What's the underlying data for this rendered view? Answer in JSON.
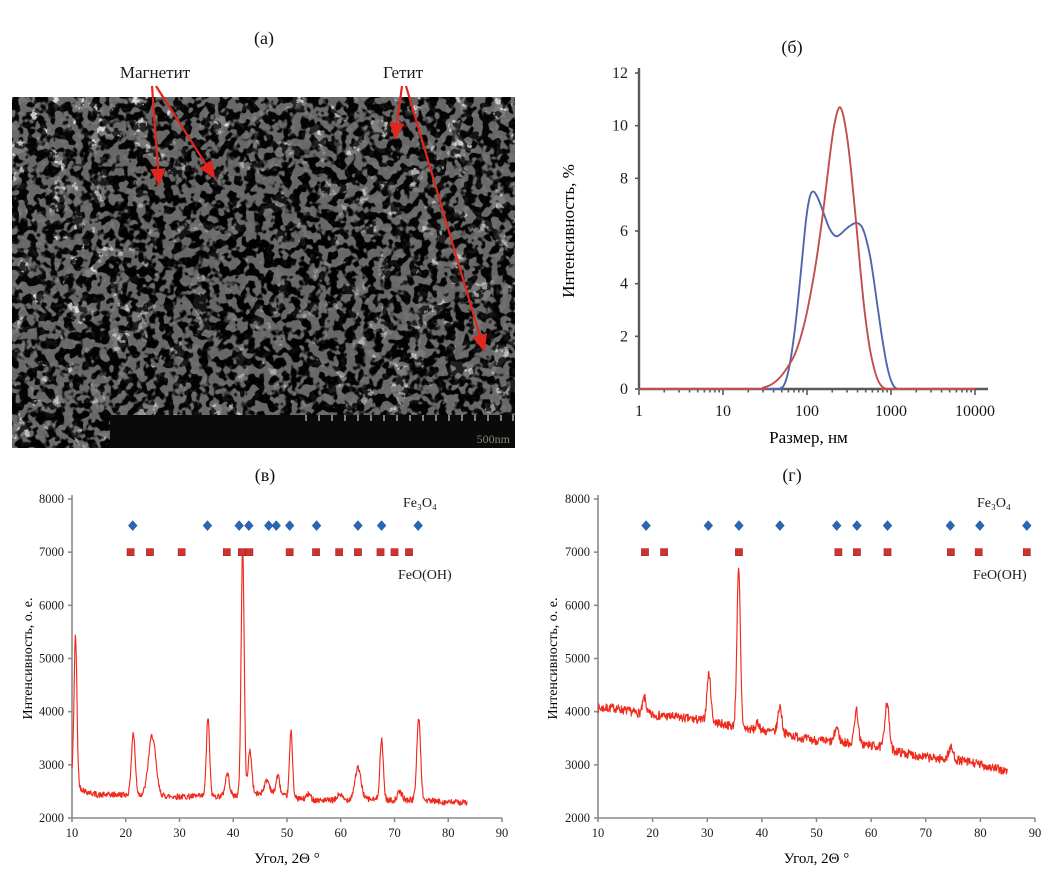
{
  "figure": {
    "background": "#ffffff",
    "panels": {
      "a": {
        "title": "(а)",
        "type": "tem-micrograph",
        "annotations": {
          "magnetite": "Магнетит",
          "goethite": "Гетит"
        },
        "scale_bar": "500nm",
        "arrow_color": "#e0261f"
      }
    }
  },
  "chart_data": [
    {
      "type": "line",
      "panel": "б",
      "title": "(б)",
      "xlabel": "Размер, нм",
      "ylabel": "Интенсивность, %",
      "x_scale": "log",
      "xlim": [
        1,
        10000
      ],
      "ylim": [
        0,
        12
      ],
      "x_ticks": [
        1,
        10,
        100,
        1000,
        10000
      ],
      "y_ticks": [
        0,
        2,
        4,
        6,
        8,
        10,
        12
      ],
      "grid": false,
      "series": [
        {
          "name": "bimodal-distribution-blue",
          "color": "#4f66ae",
          "points": [
            [
              1,
              0
            ],
            [
              35,
              0
            ],
            [
              48,
              0.02
            ],
            [
              55,
              0.25
            ],
            [
              62,
              0.9
            ],
            [
              70,
              2.0
            ],
            [
              78,
              3.3
            ],
            [
              88,
              5.0
            ],
            [
              98,
              6.5
            ],
            [
              108,
              7.3
            ],
            [
              118,
              7.5
            ],
            [
              130,
              7.35
            ],
            [
              145,
              7.0
            ],
            [
              165,
              6.5
            ],
            [
              185,
              6.1
            ],
            [
              205,
              5.88
            ],
            [
              225,
              5.8
            ],
            [
              250,
              5.88
            ],
            [
              285,
              6.05
            ],
            [
              320,
              6.18
            ],
            [
              360,
              6.28
            ],
            [
              400,
              6.3
            ],
            [
              440,
              6.2
            ],
            [
              480,
              5.95
            ],
            [
              520,
              5.55
            ],
            [
              570,
              4.95
            ],
            [
              620,
              4.2
            ],
            [
              680,
              3.3
            ],
            [
              750,
              2.35
            ],
            [
              820,
              1.55
            ],
            [
              900,
              0.85
            ],
            [
              980,
              0.4
            ],
            [
              1060,
              0.15
            ],
            [
              1150,
              0.03
            ],
            [
              1250,
              0
            ],
            [
              10000,
              0
            ]
          ]
        },
        {
          "name": "unimodal-distribution-orange",
          "color": "#c0504d",
          "points": [
            [
              1,
              0
            ],
            [
              24,
              0
            ],
            [
              30,
              0.05
            ],
            [
              38,
              0.18
            ],
            [
              48,
              0.45
            ],
            [
              58,
              0.8
            ],
            [
              70,
              1.25
            ],
            [
              82,
              1.85
            ],
            [
              95,
              2.6
            ],
            [
              110,
              3.6
            ],
            [
              128,
              4.8
            ],
            [
              148,
              6.2
            ],
            [
              168,
              7.6
            ],
            [
              188,
              8.9
            ],
            [
              208,
              9.9
            ],
            [
              228,
              10.5
            ],
            [
              245,
              10.7
            ],
            [
              262,
              10.55
            ],
            [
              282,
              10.1
            ],
            [
              305,
              9.4
            ],
            [
              332,
              8.4
            ],
            [
              362,
              7.2
            ],
            [
              395,
              5.9
            ],
            [
              430,
              4.6
            ],
            [
              468,
              3.4
            ],
            [
              510,
              2.4
            ],
            [
              555,
              1.6
            ],
            [
              605,
              1.0
            ],
            [
              660,
              0.55
            ],
            [
              720,
              0.25
            ],
            [
              790,
              0.08
            ],
            [
              870,
              0.01
            ],
            [
              950,
              0
            ],
            [
              10000,
              0
            ]
          ]
        }
      ]
    },
    {
      "type": "line",
      "panel": "в",
      "title": "(в)",
      "xlabel": "Угол, 2Θ °",
      "ylabel": "Интенсивность, о. е.",
      "xlim": [
        10,
        90
      ],
      "ylim": [
        2000,
        8000
      ],
      "x_ticks": [
        10,
        20,
        30,
        40,
        50,
        60,
        70,
        80,
        90
      ],
      "y_ticks": [
        2000,
        3000,
        4000,
        5000,
        6000,
        7000,
        8000
      ],
      "grid": false,
      "trace": {
        "name": "xrd-pattern",
        "color": "#ef2b1e",
        "x_end": 83.5,
        "noise": 55,
        "seed": 42,
        "baseline": [
          [
            10,
            2780
          ],
          [
            11,
            2600
          ],
          [
            12.5,
            2500
          ],
          [
            15,
            2430
          ],
          [
            18,
            2440
          ],
          [
            22,
            2440
          ],
          [
            26,
            2420
          ],
          [
            30,
            2400
          ],
          [
            34,
            2410
          ],
          [
            38,
            2410
          ],
          [
            42,
            2430
          ],
          [
            45,
            2460
          ],
          [
            48,
            2440
          ],
          [
            50,
            2400
          ],
          [
            53,
            2350
          ],
          [
            57,
            2330
          ],
          [
            60,
            2330
          ],
          [
            63,
            2360
          ],
          [
            66,
            2350
          ],
          [
            70,
            2330
          ],
          [
            73,
            2340
          ],
          [
            76,
            2330
          ],
          [
            79,
            2300
          ],
          [
            83.5,
            2290
          ]
        ],
        "peaks": [
          [
            10.65,
            2750,
            0.38
          ],
          [
            21.4,
            1150,
            0.5
          ],
          [
            24.9,
            1120,
            0.95
          ],
          [
            35.3,
            1480,
            0.42
          ],
          [
            38.9,
            420,
            0.55
          ],
          [
            41.75,
            4680,
            0.4
          ],
          [
            43.1,
            820,
            0.5
          ],
          [
            46.3,
            260,
            0.7
          ],
          [
            48.3,
            360,
            0.5
          ],
          [
            50.75,
            1230,
            0.4
          ],
          [
            54,
            100,
            0.6
          ],
          [
            59.8,
            120,
            0.6
          ],
          [
            63.2,
            580,
            0.8
          ],
          [
            67.6,
            1120,
            0.45
          ],
          [
            71,
            160,
            0.6
          ],
          [
            74.5,
            1530,
            0.5
          ]
        ]
      },
      "markers": {
        "fe3o4": {
          "label": "Fe₃O₄",
          "color": "#2b66b3",
          "y": 7500,
          "positions": [
            21.3,
            35.2,
            41.1,
            42.9,
            46.6,
            48.0,
            50.5,
            55.5,
            63.2,
            67.6,
            74.4
          ]
        },
        "feooh": {
          "label": "FeO(OH)",
          "color": "#cf3330",
          "y": 7000,
          "positions": [
            20.9,
            24.5,
            30.4,
            38.8,
            41.6,
            43.0,
            50.5,
            55.4,
            59.7,
            63.2,
            67.4,
            70.0,
            72.7
          ]
        }
      }
    },
    {
      "type": "line",
      "panel": "г",
      "title": "(г)",
      "xlabel": "Угол, 2Θ °",
      "ylabel": "Интенсивность, о. е.",
      "xlim": [
        10,
        90
      ],
      "ylim": [
        2000,
        8000
      ],
      "x_ticks": [
        10,
        20,
        30,
        40,
        50,
        60,
        70,
        80,
        90
      ],
      "y_ticks": [
        2000,
        3000,
        4000,
        5000,
        6000,
        7000,
        8000
      ],
      "grid": false,
      "trace": {
        "name": "xrd-pattern",
        "color": "#ef2b1e",
        "x_end": 85,
        "noise": 85,
        "seed": 7,
        "baseline": [
          [
            10,
            4060
          ],
          [
            13,
            4070
          ],
          [
            16,
            4000
          ],
          [
            19,
            3950
          ],
          [
            22,
            3920
          ],
          [
            25,
            3890
          ],
          [
            28,
            3850
          ],
          [
            31,
            3810
          ],
          [
            34,
            3740
          ],
          [
            37,
            3680
          ],
          [
            40,
            3640
          ],
          [
            43,
            3610
          ],
          [
            46,
            3540
          ],
          [
            49,
            3470
          ],
          [
            52,
            3440
          ],
          [
            55,
            3420
          ],
          [
            58,
            3390
          ],
          [
            61,
            3350
          ],
          [
            63,
            3300
          ],
          [
            66,
            3220
          ],
          [
            69,
            3160
          ],
          [
            72,
            3120
          ],
          [
            75,
            3100
          ],
          [
            78,
            3050
          ],
          [
            81,
            2980
          ],
          [
            85,
            2870
          ]
        ],
        "peaks": [
          [
            18.5,
            300,
            0.45
          ],
          [
            30.3,
            900,
            0.5
          ],
          [
            35.75,
            2950,
            0.45
          ],
          [
            39.3,
            130,
            0.5
          ],
          [
            43.3,
            500,
            0.5
          ],
          [
            53.7,
            280,
            0.5
          ],
          [
            57.3,
            640,
            0.5
          ],
          [
            62.9,
            880,
            0.55
          ],
          [
            74.6,
            210,
            0.6
          ]
        ]
      },
      "markers": {
        "fe3o4": {
          "label": "Fe₃O₄",
          "color": "#2b66b3",
          "y": 7500,
          "positions": [
            18.8,
            30.2,
            35.8,
            43.3,
            53.7,
            57.4,
            63.0,
            74.5,
            79.9,
            88.5
          ]
        },
        "feooh": {
          "label": "FeO(OH)",
          "color": "#cf3330",
          "y": 7000,
          "positions": [
            18.6,
            22.1,
            35.8,
            54.0,
            57.4,
            63.0,
            74.6,
            79.7,
            88.5
          ]
        }
      }
    }
  ]
}
